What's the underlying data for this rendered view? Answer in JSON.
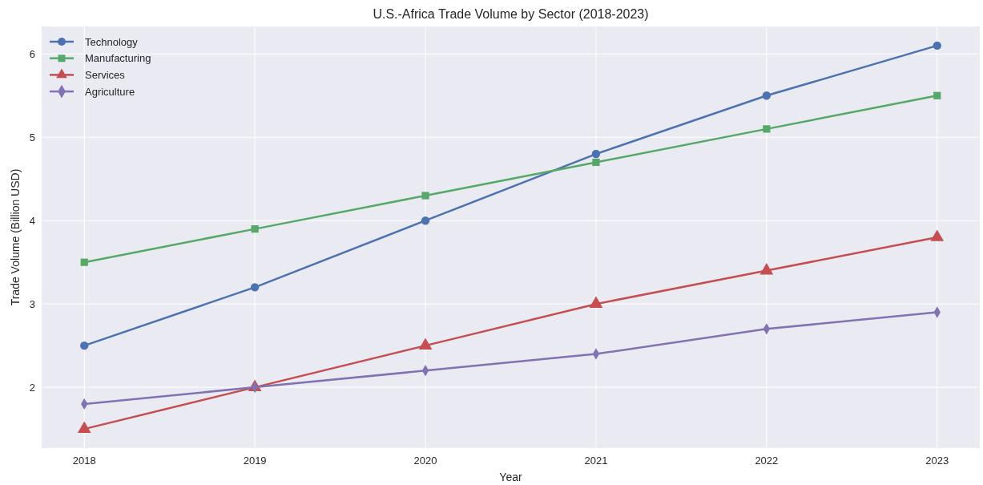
{
  "chart_data": {
    "type": "line",
    "title": "U.S.-Africa Trade Volume by Sector (2018-2023)",
    "xlabel": "Year",
    "ylabel": "Trade Volume (Billion USD)",
    "x": [
      2018,
      2019,
      2020,
      2021,
      2022,
      2023
    ],
    "series": [
      {
        "name": "Technology",
        "color": "#4c72b0",
        "marker": "circle",
        "values": [
          2.5,
          3.2,
          4.0,
          4.8,
          5.5,
          6.1
        ]
      },
      {
        "name": "Manufacturing",
        "color": "#55a868",
        "marker": "square",
        "values": [
          3.5,
          3.9,
          4.3,
          4.7,
          5.1,
          5.5
        ]
      },
      {
        "name": "Services",
        "color": "#c44e52",
        "marker": "triangle",
        "values": [
          1.5,
          2.0,
          2.5,
          3.0,
          3.4,
          3.8
        ]
      },
      {
        "name": "Agriculture",
        "color": "#8172b2",
        "marker": "diamond",
        "values": [
          1.8,
          2.0,
          2.2,
          2.4,
          2.7,
          2.9
        ]
      }
    ],
    "xlim": [
      2017.75,
      2023.25
    ],
    "xticks": [
      2018,
      2019,
      2020,
      2021,
      2022,
      2023
    ],
    "ylim": [
      1.27,
      6.33
    ],
    "yticks": [
      2,
      3,
      4,
      5,
      6
    ],
    "grid": true,
    "legend": "top left",
    "line_style": "solid"
  }
}
